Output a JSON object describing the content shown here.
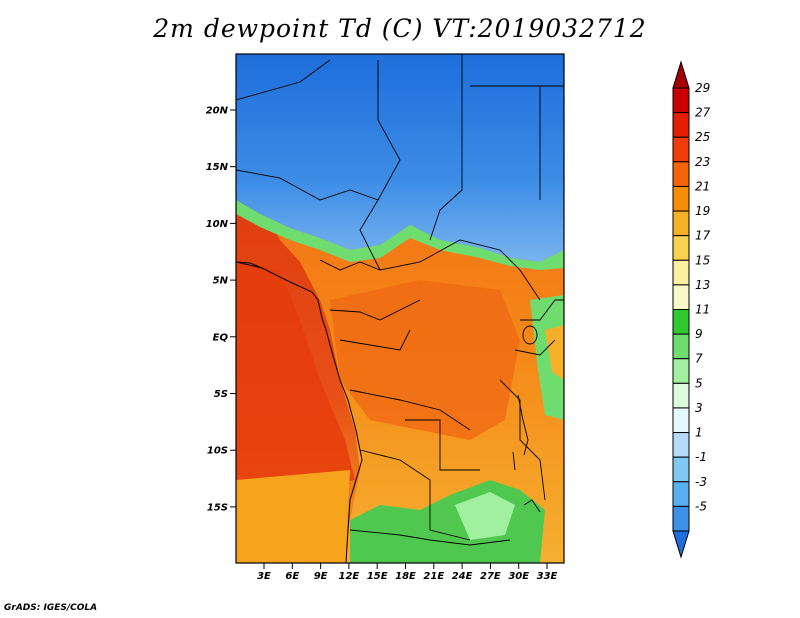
{
  "title": "2m dewpoint Td (C) VT:2019032712",
  "credit": "GrADS: IGES/COLA",
  "map": {
    "lat_ticks": [
      "20N",
      "15N",
      "10N",
      "5N",
      "EQ",
      "5S",
      "10S",
      "15S"
    ],
    "lon_ticks": [
      "3E",
      "6E",
      "9E",
      "12E",
      "15E",
      "18E",
      "21E",
      "24E",
      "27E",
      "30E",
      "33E"
    ]
  },
  "colorbar": {
    "labels": [
      "29",
      "27",
      "25",
      "23",
      "21",
      "19",
      "17",
      "15",
      "13",
      "11",
      "9",
      "7",
      "5",
      "3",
      "1",
      "-1",
      "-3",
      "-5"
    ],
    "colors": [
      "#a50000",
      "#c80000",
      "#e61e00",
      "#f03c0a",
      "#f5640a",
      "#f58c0a",
      "#f5af28",
      "#fad250",
      "#faf0a0",
      "#fafac8",
      "#32c832",
      "#6edc6e",
      "#a0f0a0",
      "#dcfadc",
      "#e6f8ff",
      "#b4dcfa",
      "#82c8f5",
      "#5aaff0",
      "#3c91e6",
      "#1e6edc"
    ]
  }
}
